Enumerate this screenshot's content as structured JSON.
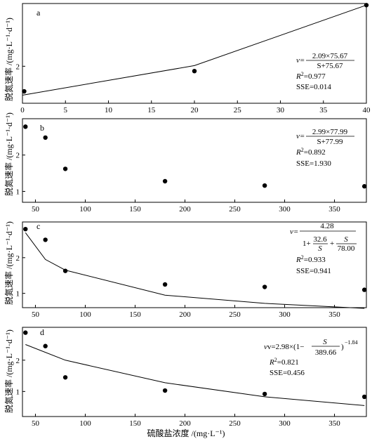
{
  "chart_data": [
    {
      "type": "scatter",
      "panel_label": "a",
      "ylabel": "脱氮速率 /(mg·L⁻¹·d⁻¹)",
      "xlim": [
        0,
        40
      ],
      "ylim": [
        0.85,
        3.95
      ],
      "xticks": [
        0,
        5,
        10,
        15,
        20,
        25,
        30,
        35,
        40
      ],
      "yticks": [
        2
      ],
      "points": [
        [
          0.2,
          1.22
        ],
        [
          20,
          1.85
        ],
        [
          40,
          3.9
        ]
      ],
      "fit_line": [
        [
          0,
          1.1
        ],
        [
          20,
          2.02
        ],
        [
          40,
          3.9
        ]
      ],
      "equation": {
        "lhs": "v=",
        "numerator": "2.09×75.67",
        "denominator": "S+75.67",
        "r2_label": "R",
        "r2_sup": "2",
        "r2_value": "=0.977",
        "sse": "SSE=0.014"
      }
    },
    {
      "type": "scatter",
      "panel_label": "b",
      "ylabel": "脱氮速率 /(mg·L⁻¹·d⁻¹)",
      "xlim": [
        37,
        382
      ],
      "ylim": [
        0.7,
        3.0
      ],
      "xticks": [
        50,
        100,
        150,
        200,
        250,
        300,
        350
      ],
      "yticks": [
        1,
        2
      ],
      "points": [
        [
          40,
          2.78
        ],
        [
          60,
          2.48
        ],
        [
          80,
          1.62
        ],
        [
          180,
          1.28
        ],
        [
          280,
          1.16
        ],
        [
          380,
          1.14
        ]
      ],
      "equation": {
        "lhs": "v=",
        "numerator": "2.99×77.99",
        "denominator": "S+77.99",
        "r2_label": "R",
        "r2_sup": "2",
        "r2_value": "=0.892",
        "sse": "SSE=1.930"
      }
    },
    {
      "type": "scatter",
      "panel_label": "c",
      "ylabel": "脱氮速率 /(mg·L⁻¹·d⁻¹)",
      "xlim": [
        37,
        382
      ],
      "ylim": [
        0.6,
        3.0
      ],
      "xticks": [
        50,
        100,
        150,
        200,
        250,
        300,
        350
      ],
      "yticks": [
        1,
        2
      ],
      "points": [
        [
          40,
          2.8
        ],
        [
          60,
          2.5
        ],
        [
          80,
          1.63
        ],
        [
          180,
          1.25
        ],
        [
          280,
          1.18
        ],
        [
          380,
          1.1
        ]
      ],
      "fit_line": [
        [
          40,
          2.7
        ],
        [
          60,
          1.95
        ],
        [
          80,
          1.65
        ],
        [
          180,
          0.95
        ],
        [
          280,
          0.72
        ],
        [
          380,
          0.58
        ]
      ],
      "equation": {
        "lhs": "v=",
        "numerator": "4.28",
        "den_a": "1+",
        "den_b_num": "32.6",
        "den_b_den": "S",
        "den_plus": "+",
        "den_c_num": "S",
        "den_c_den": "78.00",
        "r2_label": "R",
        "r2_sup": "2",
        "r2_value": "=0.933",
        "sse": "SSE=0.941"
      }
    },
    {
      "type": "scatter",
      "panel_label": "d",
      "ylabel": "脱氮速率 /(mg·L⁻¹·d⁻¹)",
      "xlabel": "硫酸盐浓度 /(mg·L⁻¹)",
      "xlim": [
        37,
        382
      ],
      "ylim": [
        0.2,
        3.05
      ],
      "xticks": [
        50,
        100,
        150,
        200,
        250,
        300,
        350
      ],
      "yticks": [
        1,
        2
      ],
      "points": [
        [
          40,
          2.88
        ],
        [
          60,
          2.45
        ],
        [
          80,
          1.45
        ],
        [
          180,
          1.03
        ],
        [
          280,
          0.92
        ],
        [
          380,
          0.83
        ]
      ],
      "fit_line": [
        [
          40,
          2.5
        ],
        [
          80,
          2.0
        ],
        [
          180,
          1.28
        ],
        [
          280,
          0.83
        ],
        [
          380,
          0.55
        ]
      ],
      "equation": {
        "pre": "v=2.98×(1−",
        "frac_num": "S",
        "frac_den": "389.66",
        "post": ")",
        "exp": "−1.84",
        "r2_label": "R",
        "r2_sup": "2",
        "r2_value": "=0.821",
        "sse": "SSE=0.456"
      }
    }
  ]
}
